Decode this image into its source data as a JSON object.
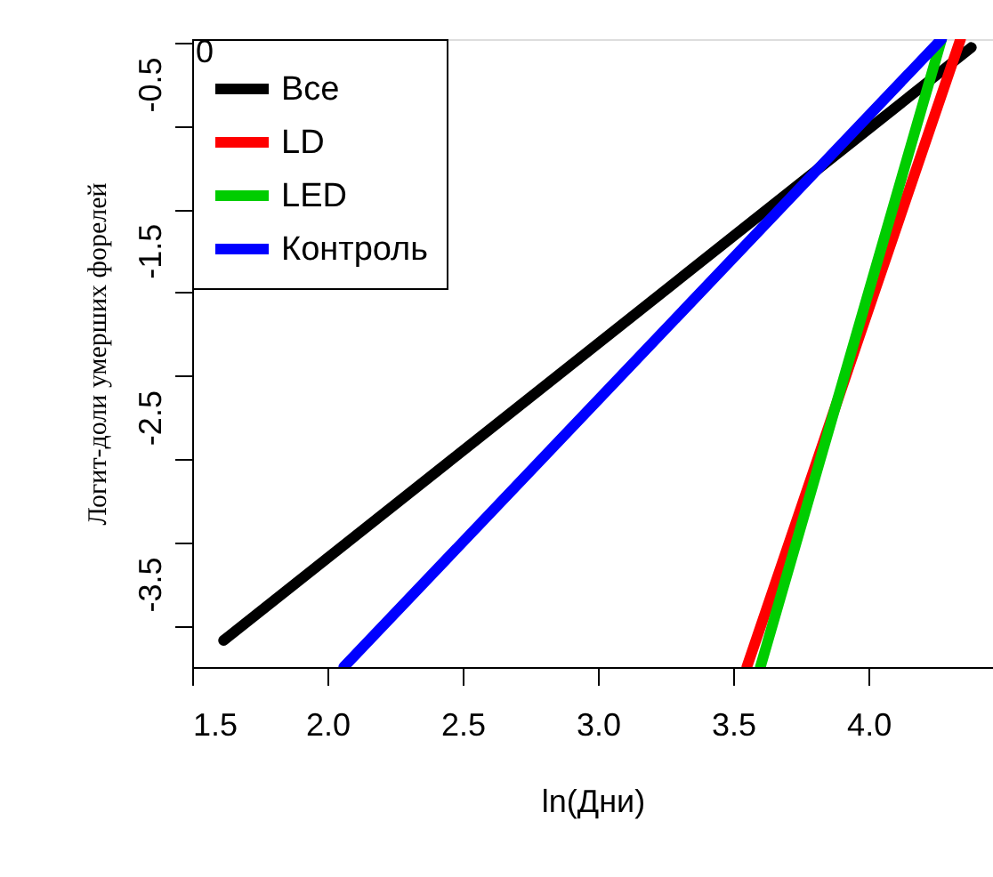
{
  "chart_data": {
    "type": "line",
    "xlabel": "ln(Дни)",
    "ylabel": "Логит-доли умерших форелей",
    "xlim": [
      1.5,
      4.46
    ],
    "xticks": [
      {
        "value": 1.5,
        "label": "1.5"
      },
      {
        "value": 2.0,
        "label": "2.0"
      },
      {
        "value": 2.5,
        "label": "2.5"
      },
      {
        "value": 3.0,
        "label": "3.0"
      },
      {
        "value": 3.5,
        "label": "3.5"
      },
      {
        "value": 4.0,
        "label": "4.0"
      }
    ],
    "ylim": [
      -4.0,
      -0.23
    ],
    "yticks": [
      {
        "value": -0.25,
        "label": null
      },
      -0.5,
      {
        "value": -0.75,
        "label": null
      },
      {
        "value": -1.25,
        "label": null
      },
      -1.5,
      {
        "value": -1.75,
        "label": null
      },
      {
        "value": -2.25,
        "label": null
      },
      -2.5,
      {
        "value": -2.75,
        "label": null
      },
      {
        "value": -3.25,
        "label": null
      },
      -3.5,
      {
        "value": -3.75,
        "label": null
      }
    ],
    "series": [
      {
        "name": "Все",
        "color": "#000000",
        "x": [
          1.616,
          4.38
        ],
        "values": [
          -3.84,
          -0.28
        ]
      },
      {
        "name": "LD",
        "color": "#ff0000",
        "x": [
          3.55,
          4.34
        ],
        "values": [
          -4.0,
          -0.23
        ]
      },
      {
        "name": "LED",
        "color": "#00cd00",
        "x": [
          3.6,
          4.27
        ],
        "values": [
          -4.0,
          -0.23
        ]
      },
      {
        "name": "Контроль",
        "color": "#0000ff",
        "x": [
          2.06,
          4.27
        ],
        "values": [
          -4.0,
          -0.23
        ]
      }
    ],
    "legend": "top left",
    "grid": false,
    "line_style": "solid",
    "marker": "none",
    "annotations": [
      "0"
    ]
  }
}
